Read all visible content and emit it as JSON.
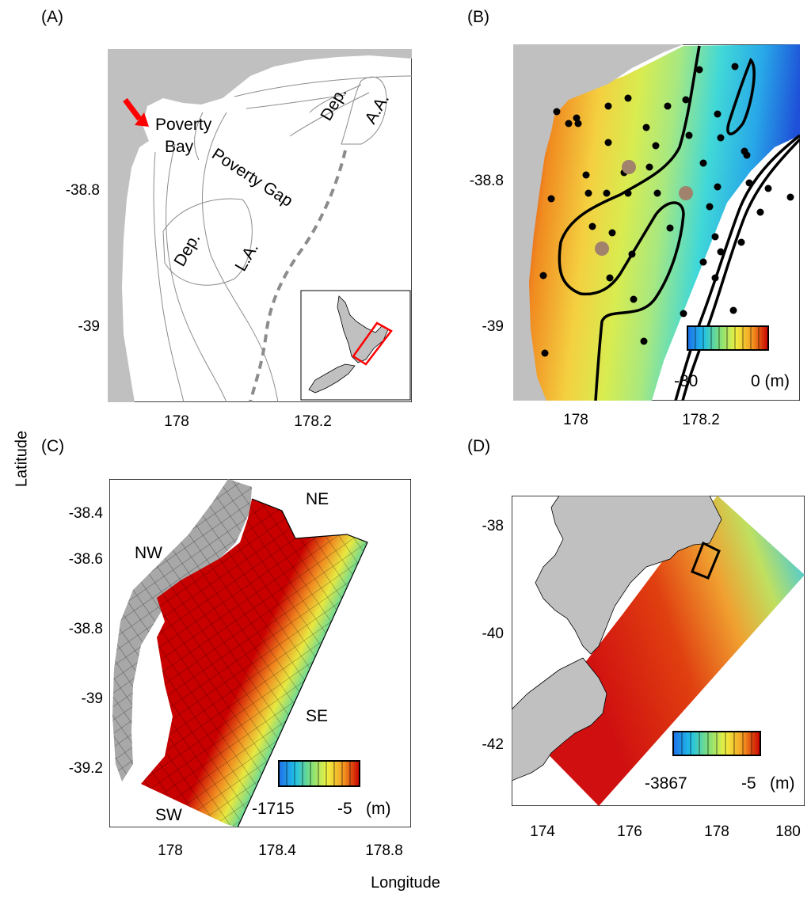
{
  "figure": {
    "ylabel": "Latitude",
    "xlabel": "Longitude"
  },
  "panelA": {
    "label": "(A)",
    "place_labels": [
      "Poverty",
      "Bay",
      "Poverty Gap",
      "Dep.",
      "L.A.",
      "Dep.",
      "A.A."
    ],
    "yticks": [
      "-38.8",
      "-39"
    ],
    "xticks": [
      "178",
      "178.2"
    ],
    "colors": {
      "land": "#c0c0c0",
      "contour": "#8c8c8c",
      "shelf_edge": "#8c8c8c",
      "arrow": "#ff0000",
      "inset_box": "#ff0000"
    }
  },
  "panelB": {
    "label": "(B)",
    "yticks": [
      "-38.8",
      "-39"
    ],
    "xticks": [
      "178",
      "178.2"
    ],
    "colorbar": {
      "min_label": "-80",
      "max_label": "0 (m)",
      "range": [
        -80,
        0
      ]
    },
    "colors": {
      "land": "#c0c0c0",
      "station_dot": "#000000",
      "site_dot": "#a0826d"
    }
  },
  "panelC": {
    "label": "(C)",
    "compass": [
      "NW",
      "NE",
      "SE",
      "SW"
    ],
    "yticks": [
      "-38.4",
      "-38.6",
      "-38.8",
      "-39",
      "-39.2"
    ],
    "xticks": [
      "178",
      "178.4",
      "178.8"
    ],
    "colorbar": {
      "min_label": "-1715",
      "max_label": "-5",
      "unit": "(m)",
      "range": [
        -1715,
        -5
      ]
    },
    "colors": {
      "land_grid": "#a8a8a8"
    }
  },
  "panelD": {
    "label": "(D)",
    "yticks": [
      "-38",
      "-40",
      "-42"
    ],
    "xticks": [
      "174",
      "176",
      "178",
      "180"
    ],
    "colorbar": {
      "min_label": "-3867",
      "max_label": "-5",
      "unit": "(m)",
      "range": [
        -3867,
        -5
      ]
    },
    "colors": {
      "land": "#c0c0c0"
    }
  }
}
